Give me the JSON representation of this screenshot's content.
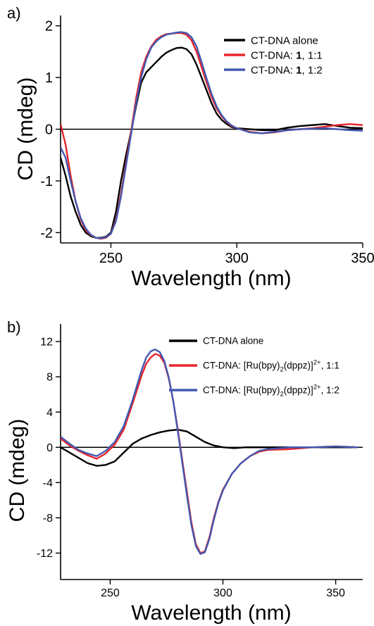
{
  "chart_data": [
    {
      "type": "line",
      "panel_label": "a)",
      "xlabel": "Wavelength (nm)",
      "ylabel": "CD (mdeg)",
      "xlim": [
        230,
        350
      ],
      "ylim": [
        -2.2,
        2.2
      ],
      "xticks": [
        250,
        300,
        350
      ],
      "yticks": [
        2,
        1,
        0,
        -1,
        -2
      ],
      "zero_line": true,
      "legend_position": "top-right",
      "series": [
        {
          "name": "CT-DNA alone",
          "legend": {
            "pre": "CT-DNA alone",
            "bold": "",
            "post": ""
          },
          "color": "#000000",
          "x": [
            230,
            232,
            234,
            236,
            238,
            240,
            242,
            244,
            246,
            248,
            250,
            252,
            254,
            256,
            258,
            260,
            262,
            264,
            266,
            268,
            270,
            272,
            274,
            276,
            278,
            280,
            282,
            284,
            286,
            288,
            290,
            292,
            294,
            296,
            298,
            300,
            305,
            310,
            315,
            320,
            325,
            330,
            335,
            340,
            345,
            350
          ],
          "y": [
            -0.55,
            -0.9,
            -1.3,
            -1.6,
            -1.85,
            -2.0,
            -2.07,
            -2.1,
            -2.1,
            -2.08,
            -2.0,
            -1.6,
            -1.0,
            -0.5,
            -0.05,
            0.45,
            0.9,
            1.1,
            1.2,
            1.3,
            1.4,
            1.48,
            1.53,
            1.57,
            1.58,
            1.55,
            1.45,
            1.25,
            1.0,
            0.75,
            0.5,
            0.3,
            0.18,
            0.1,
            0.04,
            0.02,
            0.0,
            -0.02,
            -0.02,
            0.03,
            0.06,
            0.08,
            0.1,
            0.06,
            0.03,
            0.02
          ]
        },
        {
          "name": "CT-DNA: 1, 1:1",
          "legend": {
            "pre": "CT-DNA: ",
            "bold": "1",
            "post": ", 1:1"
          },
          "color": "#e8252b",
          "x": [
            230,
            232,
            234,
            236,
            238,
            240,
            242,
            244,
            246,
            248,
            250,
            252,
            254,
            256,
            258,
            260,
            262,
            264,
            266,
            268,
            270,
            272,
            274,
            276,
            278,
            280,
            282,
            284,
            286,
            288,
            290,
            292,
            294,
            296,
            298,
            300,
            305,
            310,
            315,
            320,
            325,
            330,
            335,
            340,
            345,
            350
          ],
          "y": [
            0.1,
            -0.3,
            -0.9,
            -1.4,
            -1.75,
            -1.95,
            -2.05,
            -2.1,
            -2.12,
            -2.1,
            -2.02,
            -1.75,
            -1.25,
            -0.65,
            -0.05,
            0.6,
            1.1,
            1.4,
            1.6,
            1.73,
            1.8,
            1.84,
            1.85,
            1.86,
            1.86,
            1.83,
            1.72,
            1.5,
            1.2,
            0.9,
            0.62,
            0.4,
            0.25,
            0.14,
            0.06,
            0.02,
            -0.05,
            -0.08,
            -0.06,
            -0.02,
            0.0,
            0.02,
            0.05,
            0.08,
            0.1,
            0.08
          ]
        },
        {
          "name": "CT-DNA: 1, 1:2",
          "legend": {
            "pre": "CT-DNA: ",
            "bold": "1",
            "post": ", 1:2"
          },
          "color": "#4358b0",
          "x": [
            230,
            232,
            234,
            236,
            238,
            240,
            242,
            244,
            246,
            248,
            250,
            252,
            254,
            256,
            258,
            260,
            262,
            264,
            266,
            268,
            270,
            272,
            274,
            276,
            278,
            280,
            282,
            284,
            286,
            288,
            290,
            292,
            294,
            296,
            298,
            300,
            305,
            310,
            315,
            320,
            325,
            330,
            335,
            340,
            345,
            350
          ],
          "y": [
            -0.35,
            -0.55,
            -1.0,
            -1.4,
            -1.72,
            -1.92,
            -2.04,
            -2.1,
            -2.11,
            -2.09,
            -2.02,
            -1.78,
            -1.3,
            -0.7,
            -0.1,
            0.5,
            1.0,
            1.35,
            1.58,
            1.7,
            1.78,
            1.83,
            1.85,
            1.87,
            1.88,
            1.86,
            1.78,
            1.6,
            1.3,
            0.98,
            0.68,
            0.44,
            0.27,
            0.15,
            0.07,
            0.02,
            -0.06,
            -0.08,
            -0.05,
            -0.02,
            0.0,
            0.01,
            0.02,
            0.0,
            -0.02,
            -0.03
          ]
        }
      ]
    },
    {
      "type": "line",
      "panel_label": "b)",
      "xlabel": "Wavelength (nm)",
      "ylabel": "CD (mdeg)",
      "xlim": [
        228,
        362
      ],
      "ylim": [
        -15,
        14
      ],
      "xticks": [
        250,
        300,
        350
      ],
      "yticks": [
        12,
        8,
        4,
        0,
        -4,
        -8,
        -12
      ],
      "zero_line": true,
      "legend_position": "top-right",
      "series": [
        {
          "name": "CT-DNA alone",
          "legend": {
            "pre": "CT-DNA alone",
            "sup": "",
            "post": ""
          },
          "color": "#000000",
          "x": [
            228,
            232,
            236,
            240,
            244,
            248,
            252,
            256,
            260,
            264,
            268,
            272,
            276,
            280,
            284,
            288,
            292,
            296,
            300,
            305,
            310,
            320,
            330,
            340,
            350,
            360
          ],
          "y": [
            0.0,
            -0.6,
            -1.2,
            -1.8,
            -2.1,
            -2.0,
            -1.6,
            -0.6,
            0.4,
            1.0,
            1.4,
            1.7,
            1.9,
            2.0,
            1.8,
            1.2,
            0.6,
            0.2,
            0.0,
            -0.1,
            0.0,
            0.0,
            0.0,
            0.0,
            0.0,
            0.0
          ]
        },
        {
          "name": "CT-DNA: [Ru(bpy)2(dppz)]2+, 1:1",
          "legend": {
            "pre": "CT-DNA: [Ru(bpy)",
            "sub": "2",
            "mid": "(dppz)]",
            "sup": "2+",
            "post": ",  1:1"
          },
          "color": "#e8252b",
          "x": [
            228,
            232,
            236,
            240,
            244,
            248,
            252,
            256,
            260,
            264,
            266,
            268,
            270,
            272,
            274,
            276,
            278,
            280,
            282,
            284,
            286,
            288,
            290,
            292,
            294,
            296,
            298,
            300,
            304,
            308,
            312,
            316,
            320,
            330,
            340,
            350,
            360
          ],
          "y": [
            1.0,
            0.2,
            -0.4,
            -0.9,
            -1.3,
            -0.7,
            0.3,
            2.0,
            5.0,
            8.2,
            9.5,
            10.2,
            10.6,
            10.4,
            9.6,
            7.8,
            5.2,
            2.0,
            -1.5,
            -5.0,
            -8.5,
            -11.0,
            -12.0,
            -11.8,
            -10.2,
            -8.0,
            -6.2,
            -4.8,
            -3.0,
            -1.8,
            -1.0,
            -0.5,
            -0.3,
            -0.2,
            0.0,
            0.1,
            0.0
          ]
        },
        {
          "name": "CT-DNA: [Ru(bpy)2(dppz)]2+, 1:2",
          "legend": {
            "pre": "CT-DNA: [Ru(bpy)",
            "sub": "2",
            "mid": "(dppz)]",
            "sup": "2+",
            "post": ",  1:2"
          },
          "color": "#4358b0",
          "x": [
            228,
            232,
            236,
            240,
            244,
            248,
            252,
            256,
            260,
            264,
            266,
            268,
            270,
            272,
            274,
            276,
            278,
            280,
            282,
            284,
            286,
            288,
            290,
            292,
            294,
            296,
            298,
            300,
            304,
            308,
            312,
            316,
            320,
            330,
            340,
            350,
            360
          ],
          "y": [
            1.2,
            0.4,
            -0.3,
            -0.7,
            -1.0,
            -0.4,
            0.6,
            2.4,
            5.4,
            8.8,
            10.2,
            10.9,
            11.1,
            10.8,
            9.8,
            7.9,
            5.2,
            1.8,
            -1.8,
            -5.4,
            -8.8,
            -11.2,
            -12.1,
            -11.9,
            -10.4,
            -8.2,
            -6.3,
            -4.9,
            -3.0,
            -1.8,
            -1.0,
            -0.4,
            -0.2,
            0.0,
            0.0,
            0.1,
            0.0
          ]
        }
      ]
    }
  ]
}
